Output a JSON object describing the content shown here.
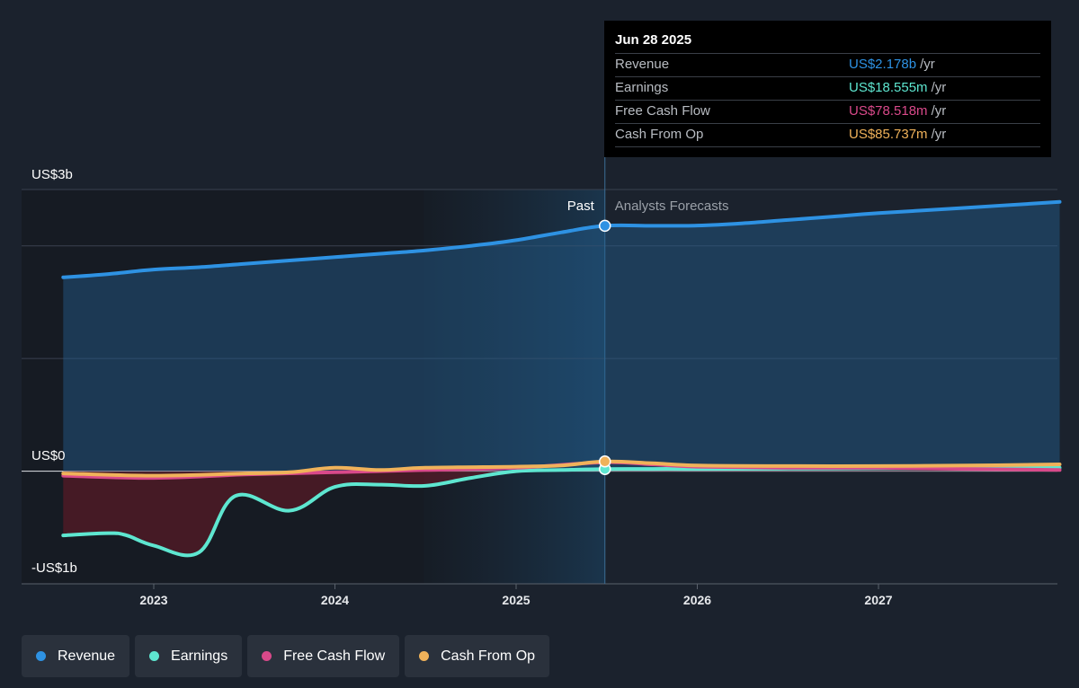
{
  "tooltip": {
    "date": "Jun 28 2025",
    "rows": [
      {
        "name": "Revenue",
        "value": "US$2.178b",
        "unit": "/yr",
        "color": "#2e92e3"
      },
      {
        "name": "Earnings",
        "value": "US$18.555m",
        "unit": "/yr",
        "color": "#5ee6d0"
      },
      {
        "name": "Free Cash Flow",
        "value": "US$78.518m",
        "unit": "/yr",
        "color": "#d9498a"
      },
      {
        "name": "Cash From Op",
        "value": "US$85.737m",
        "unit": "/yr",
        "color": "#f0b25a"
      }
    ]
  },
  "legend": [
    {
      "label": "Revenue",
      "color": "#2e92e3"
    },
    {
      "label": "Earnings",
      "color": "#5ee6d0"
    },
    {
      "label": "Free Cash Flow",
      "color": "#d9498a"
    },
    {
      "label": "Cash From Op",
      "color": "#f0b25a"
    }
  ],
  "chart_data": {
    "type": "line",
    "ylabels": [
      "US$3b",
      "US$0",
      "-US$1b"
    ],
    "past_label": "Past",
    "forecast_label": "Analysts Forecasts",
    "x_ticks": [
      "2023",
      "2024",
      "2025",
      "2026",
      "2027"
    ],
    "ylim": [
      -1.0,
      2.5
    ],
    "ylim_unit": "US$ billions",
    "grid": true,
    "legend_position": "bottom",
    "series": [
      {
        "name": "Revenue",
        "color": "#2e92e3",
        "fill": true,
        "x": [
          2022.5,
          2022.75,
          2023.0,
          2023.25,
          2023.5,
          2023.75,
          2024.0,
          2024.25,
          2024.5,
          2024.75,
          2025.0,
          2025.25,
          2025.49,
          2025.75,
          2026.0,
          2026.25,
          2026.5,
          2026.75,
          2027.0,
          2027.5,
          2028.0
        ],
        "y": [
          1.72,
          1.75,
          1.79,
          1.81,
          1.84,
          1.87,
          1.9,
          1.93,
          1.96,
          2.0,
          2.05,
          2.12,
          2.178,
          2.178,
          2.18,
          2.2,
          2.23,
          2.26,
          2.29,
          2.34,
          2.39
        ]
      },
      {
        "name": "Earnings",
        "color": "#5ee6d0",
        "fill": true,
        "x": [
          2022.5,
          2022.75,
          2022.85,
          2023.0,
          2023.25,
          2023.45,
          2023.75,
          2024.0,
          2024.25,
          2024.5,
          2024.75,
          2025.0,
          2025.25,
          2025.49,
          2025.75,
          2026.0,
          2026.5,
          2027.0,
          2027.5,
          2028.0
        ],
        "y": [
          -0.57,
          -0.55,
          -0.57,
          -0.66,
          -0.72,
          -0.22,
          -0.35,
          -0.14,
          -0.12,
          -0.13,
          -0.06,
          0.0,
          0.01,
          0.019,
          0.02,
          0.02,
          0.022,
          0.025,
          0.028,
          0.03
        ]
      },
      {
        "name": "Free Cash Flow",
        "color": "#d9498a",
        "fill": false,
        "x": [
          2022.5,
          2023.0,
          2023.5,
          2024.0,
          2024.5,
          2025.0,
          2025.49,
          2025.75,
          2026.0,
          2026.5,
          2027.0,
          2027.5,
          2028.0
        ],
        "y": [
          -0.04,
          -0.06,
          -0.03,
          -0.01,
          0.01,
          0.03,
          0.079,
          0.06,
          0.04,
          0.03,
          0.03,
          0.02,
          0.01
        ]
      },
      {
        "name": "Cash From Op",
        "color": "#f0b25a",
        "fill": false,
        "x": [
          2022.5,
          2023.0,
          2023.5,
          2023.75,
          2024.0,
          2024.25,
          2024.5,
          2025.0,
          2025.25,
          2025.49,
          2025.75,
          2026.0,
          2026.5,
          2027.0,
          2027.5,
          2028.0
        ],
        "y": [
          -0.02,
          -0.04,
          -0.02,
          -0.01,
          0.03,
          0.01,
          0.03,
          0.04,
          0.05,
          0.086,
          0.07,
          0.05,
          0.045,
          0.045,
          0.05,
          0.06
        ]
      }
    ],
    "highlight_x": 2025.49
  }
}
